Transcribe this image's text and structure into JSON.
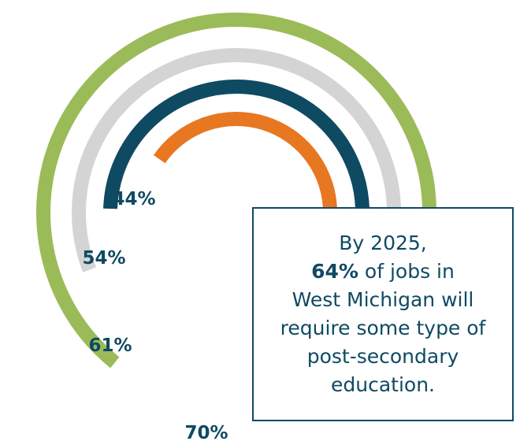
{
  "chart_data": {
    "type": "radial-bar",
    "series": [
      {
        "label": "70%",
        "value": 70,
        "color": "#9bbb59"
      },
      {
        "label": "61%",
        "value": 61,
        "color": "#d4d4d4"
      },
      {
        "label": "54%",
        "value": 54,
        "color": "#0f4a63"
      },
      {
        "label": "44%",
        "value": 44,
        "color": "#e87722"
      }
    ]
  },
  "callout": {
    "line1": "By 2025,",
    "highlight": "64%",
    "line2_rest": " of jobs in",
    "line3": "West Michigan will",
    "line4": "require some type of",
    "line5": "post-secondary",
    "line6": "education."
  }
}
